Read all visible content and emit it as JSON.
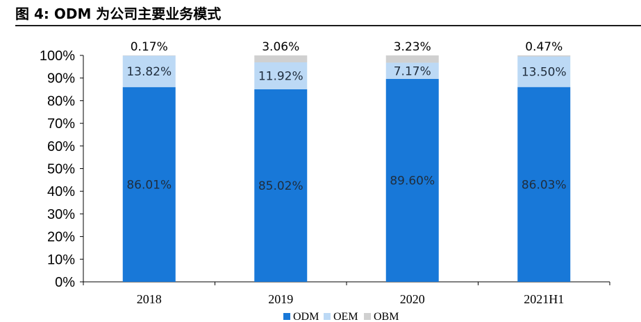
{
  "figure": {
    "title": "图 4:  ODM 为公司主要业务模式"
  },
  "colors": {
    "ODM": "#1878d8",
    "OEM": "#bcd9f5",
    "OBM": "#d0d0d0",
    "axis": "#000000"
  },
  "chart_data": {
    "type": "bar",
    "stacked": true,
    "categories": [
      "2018",
      "2019",
      "2020",
      "2021H1"
    ],
    "series": [
      {
        "name": "ODM",
        "values": [
          86.01,
          85.02,
          89.6,
          86.03
        ],
        "labels": [
          "86.01%",
          "85.02%",
          "89.60%",
          "86.03%"
        ]
      },
      {
        "name": "OEM",
        "values": [
          13.82,
          11.92,
          7.17,
          13.5
        ],
        "labels": [
          "13.82%",
          "11.92%",
          "7.17%",
          "13.50%"
        ]
      },
      {
        "name": "OBM",
        "values": [
          0.17,
          3.06,
          3.23,
          0.47
        ],
        "labels": [
          "0.17%",
          "3.06%",
          "3.23%",
          "0.47%"
        ]
      }
    ],
    "yticks": [
      "0%",
      "10%",
      "20%",
      "30%",
      "40%",
      "50%",
      "60%",
      "70%",
      "80%",
      "90%",
      "100%"
    ],
    "ylim": [
      0,
      100
    ],
    "legend_position": "bottom",
    "grid": false
  }
}
